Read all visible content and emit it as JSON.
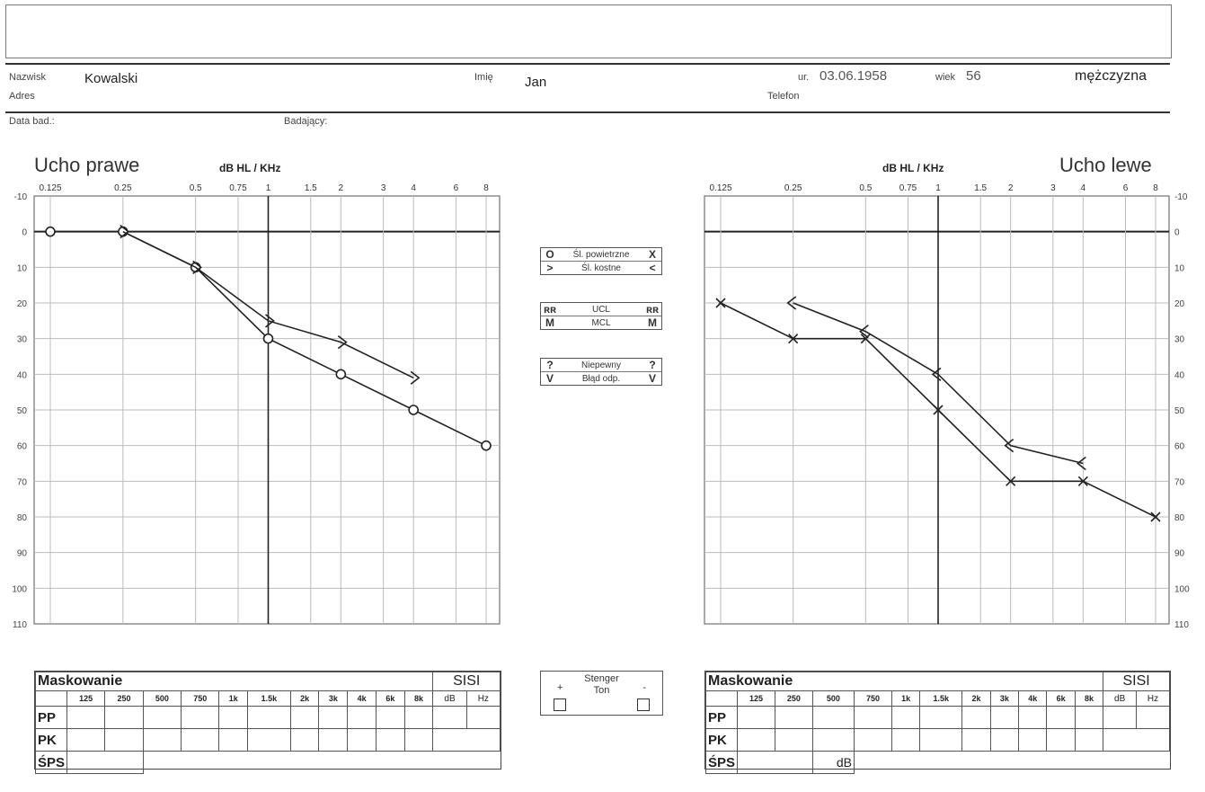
{
  "patient": {
    "surname_label": "Nazwisk",
    "surname": "Kowalski",
    "address_label": "Adres",
    "name_label": "Imię",
    "name": "Jan",
    "birth_label": "ur.",
    "birth": "03.06.1958",
    "age_label": "wiek",
    "age": "56",
    "phone_label": "Telefon",
    "sex": "mężczyzna",
    "exam_date_label": "Data bad.:",
    "examiner_label": "Badający:"
  },
  "legend": {
    "air_label": "Śl. powietrzne",
    "air_right": "O",
    "air_left": "X",
    "bone_label": "Śl. kostne",
    "bone_right": ">",
    "bone_left": "<",
    "ucl_label": "UCL",
    "ucl_right": "ʀʀ",
    "ucl_left": "ʀʀ",
    "mcl_label": "MCL",
    "mcl_right": "M",
    "mcl_left": "M",
    "uncertain_label": "Niepewny",
    "uncertain_right": "?",
    "uncertain_left": "?",
    "false_label": "Błąd odp.",
    "false_right": "V",
    "false_left": "V"
  },
  "stenger": {
    "title": "Stenger",
    "subtitle": "Ton",
    "plus": "+",
    "minus": "-"
  },
  "mask": {
    "title": "Maskowanie",
    "sisi": "SISI",
    "freqs": [
      "125",
      "250",
      "500",
      "750",
      "1k",
      "1.5k",
      "2k",
      "3k",
      "4k",
      "6k",
      "8k"
    ],
    "sisi_db": "dB",
    "sisi_hz": "Hz",
    "rows": [
      "PP",
      "PK",
      "ŚPS"
    ],
    "sps_unit": "dB"
  },
  "chart_data": [
    {
      "type": "line",
      "title": "Ucho prawe",
      "xlabel": "dB HL / KHz",
      "x_ticks": [
        "0.125",
        "0.25",
        "0.5",
        "0.75",
        "1",
        "1.5",
        "2",
        "3",
        "4",
        "6",
        "8"
      ],
      "y_ticks": [
        "-10",
        "0",
        "10",
        "20",
        "30",
        "40",
        "50",
        "60",
        "70",
        "80",
        "90",
        "100",
        "110"
      ],
      "ylim": [
        -10,
        110
      ],
      "y_inverted": true,
      "x_scale": "log",
      "series": [
        {
          "name": "Śl. powietrzne",
          "symbol": "O",
          "color": "#222222",
          "x": [
            0.125,
            0.25,
            0.5,
            1,
            2,
            4,
            8
          ],
          "y": [
            0,
            0,
            10,
            30,
            40,
            50,
            60
          ]
        },
        {
          "name": "Śl. kostne",
          "symbol": ">",
          "color": "#222222",
          "x": [
            0.25,
            0.5,
            1,
            2,
            4
          ],
          "y": [
            0,
            10,
            25,
            31,
            41
          ]
        }
      ]
    },
    {
      "type": "line",
      "title": "Ucho lewe",
      "xlabel": "dB HL / KHz",
      "x_ticks": [
        "0.125",
        "0.25",
        "0.5",
        "0.75",
        "1",
        "1.5",
        "2",
        "3",
        "4",
        "6",
        "8"
      ],
      "y_ticks": [
        "-10",
        "0",
        "10",
        "20",
        "30",
        "40",
        "50",
        "60",
        "70",
        "80",
        "90",
        "100",
        "110"
      ],
      "ylim": [
        -10,
        110
      ],
      "y_inverted": true,
      "x_scale": "log",
      "series": [
        {
          "name": "Śl. powietrzne",
          "symbol": "X",
          "color": "#222222",
          "x": [
            0.125,
            0.25,
            0.5,
            1,
            2,
            4,
            8
          ],
          "y": [
            20,
            30,
            30,
            50,
            70,
            70,
            80
          ]
        },
        {
          "name": "Śl. kostne",
          "symbol": "<",
          "color": "#222222",
          "x": [
            0.25,
            0.5,
            1,
            2,
            4
          ],
          "y": [
            20,
            28,
            40,
            60,
            65
          ]
        }
      ]
    }
  ]
}
